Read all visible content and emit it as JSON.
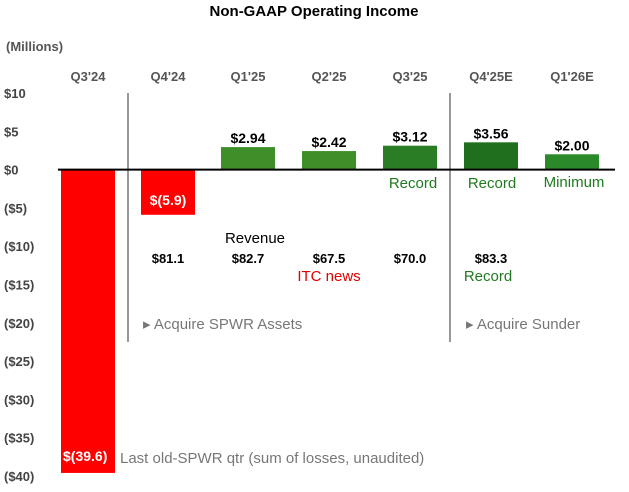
{
  "chart_data": {
    "type": "bar",
    "title": "Non-GAAP Operating Income",
    "units_label": "(Millions)",
    "categories": [
      "Q3'24",
      "Q4'24",
      "Q1'25",
      "Q2'25",
      "Q3'25",
      "Q4'25E",
      "Q1'26E"
    ],
    "values": [
      -39.6,
      -5.9,
      2.94,
      2.42,
      3.12,
      3.56,
      2.0
    ],
    "value_labels": [
      "$(39.6)",
      "$(5.9)",
      "$2.94",
      "$2.42",
      "$3.12",
      "$3.56",
      "$2.00"
    ],
    "bar_colors": [
      "#ff0000",
      "#ff0000",
      "#3e8f2a",
      "#3e8f2a",
      "#2a7d24",
      "#1f6f1f",
      "#2a8a2a"
    ],
    "ylim": [
      -40,
      10
    ],
    "yticks": [
      10,
      5,
      0,
      -5,
      -10,
      -15,
      -20,
      -25,
      -30,
      -35,
      -40
    ],
    "ytick_labels": [
      "$10",
      "$5",
      "$0",
      "($5)",
      "($10)",
      "($15)",
      "($20)",
      "($25)",
      "($30)",
      "($35)",
      "($40)"
    ],
    "revenue_title": "Revenue",
    "revenue_labels": [
      "",
      "$81.1",
      "$82.7",
      "$67.5",
      "$70.0",
      "$83.3",
      ""
    ],
    "annotations": {
      "q3_25_record": "Record",
      "q4_25_record": "Record",
      "q1_26_minimum": "Minimum",
      "itc_news": "ITC news",
      "revenue_record": "Record",
      "acquire_spwr": "▸ Acquire SPWR Assets",
      "acquire_sunder": "▸ Acquire Sunder",
      "last_old_spwr": "Last old-SPWR qtr (sum of losses, unaudited)"
    },
    "colors": {
      "negative": "#ff0000",
      "annotation_green": "#1f7a1f",
      "annotation_red": "#e00000",
      "annotation_gray": "#777777"
    }
  }
}
